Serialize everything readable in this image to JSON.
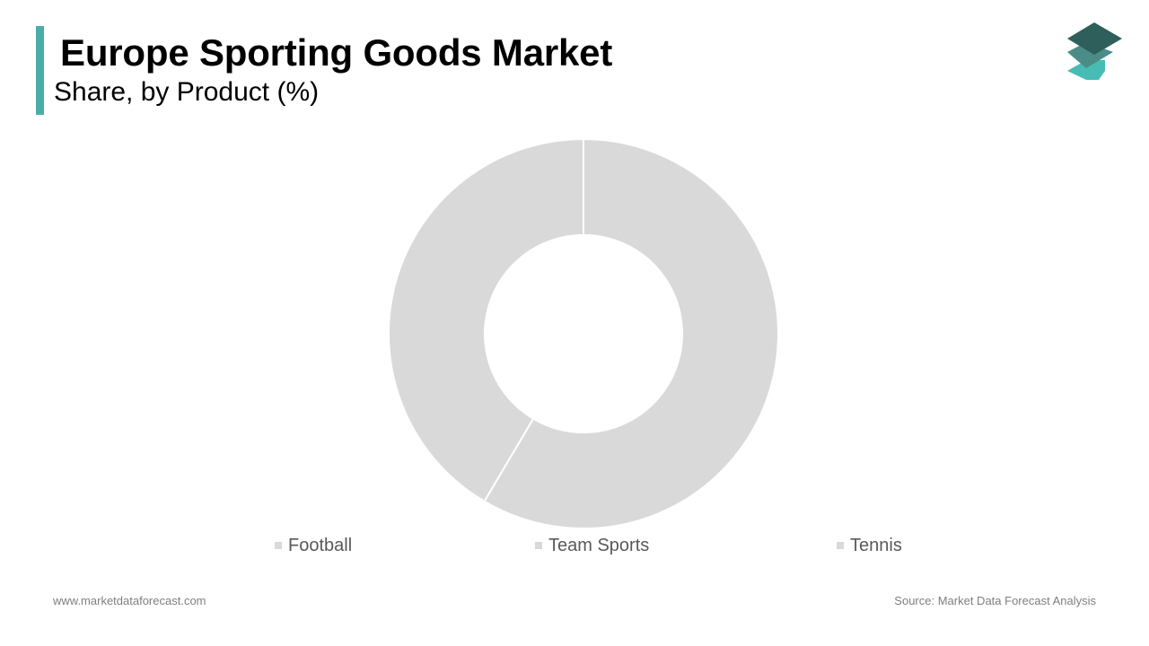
{
  "header": {
    "title": "Europe Sporting Goods Market",
    "subtitle": "Share, by Product (%)"
  },
  "colors": {
    "accent": "#4bada8",
    "slice": "#d9d9d9",
    "slice_border": "#ffffff",
    "logo_top": "#2e5f5a",
    "logo_mid": "#4c8c86",
    "logo_bottom": "#46bcb4"
  },
  "chart_data": {
    "type": "pie",
    "variant": "donut",
    "title": "Europe Sporting Goods Market",
    "subtitle": "Share, by Product (%)",
    "categories": [
      "Football",
      "Team Sports",
      "Tennis"
    ],
    "values": [
      58.5,
      41.5,
      0
    ],
    "legend_position": "bottom"
  },
  "footer": {
    "website": "www.marketdataforecast.com",
    "source": "Source: Market Data Forecast Analysis"
  },
  "logo": {
    "icon": "stacked-layers-icon"
  }
}
